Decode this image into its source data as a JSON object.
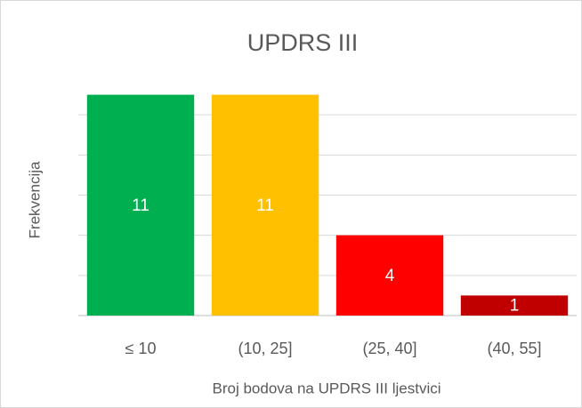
{
  "chart_data": {
    "type": "bar",
    "title": "UPDRS III",
    "x_label": "Broj bodova na UPDRS III ljestvici",
    "y_label": "Frekvencija",
    "categories": [
      "≤ 10",
      "(10, 25]",
      "(25, 40]",
      "(40, 55]"
    ],
    "values": [
      11,
      11,
      4,
      1
    ],
    "colors": [
      "#00b050",
      "#ffc000",
      "#ff0000",
      "#c00000"
    ],
    "ylim": [
      0,
      12
    ],
    "yticks": [
      0,
      2,
      4,
      6,
      8,
      10
    ],
    "grid": true,
    "ytick_labels": false
  }
}
